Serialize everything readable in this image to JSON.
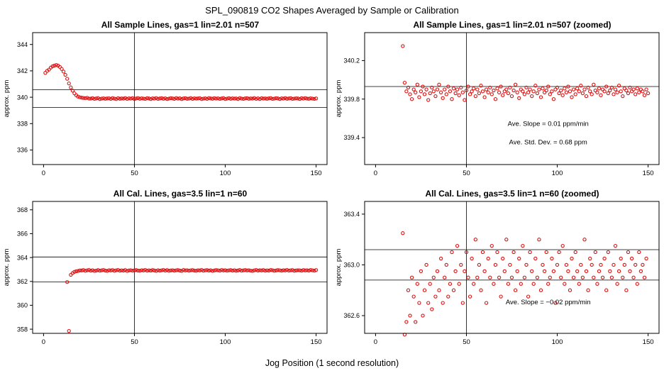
{
  "figure": {
    "title": "SPL_090819  CO2 Shapes Averaged by Sample or Calibration",
    "xlabel": "Jog Position (1 second resolution)"
  },
  "colors": {
    "point": "#e01010",
    "axis": "#000000",
    "background": "#ffffff"
  },
  "chart_data": [
    {
      "type": "scatter",
      "title": "All Sample Lines, gas=1 lin=2.01 n=507",
      "ylabel": "approx. ppm",
      "xlim": [
        -6,
        156
      ],
      "ylim": [
        334.9,
        344.9
      ],
      "xticks": [
        "0",
        "50",
        "100",
        "150"
      ],
      "yticks": [
        "336",
        "338",
        "340",
        "342",
        "344"
      ],
      "hlines": [
        340.58,
        339.22
      ],
      "vlines": [
        50
      ],
      "x0": 1,
      "xstep": 1,
      "y": [
        341.85,
        342.0,
        342.1,
        342.25,
        342.35,
        342.4,
        342.45,
        342.4,
        342.3,
        342.15,
        341.95,
        341.7,
        341.4,
        341.05,
        340.75,
        340.5,
        340.3,
        340.15,
        340.05,
        340.0,
        339.97,
        339.95,
        339.93,
        339.96,
        339.9,
        339.9,
        339.93,
        339.88,
        339.91,
        339.94,
        339.87,
        339.9,
        339.92,
        339.89,
        339.91,
        339.92,
        339.88,
        339.94,
        339.9,
        339.87,
        339.93,
        339.89,
        339.91,
        339.9,
        339.94,
        339.88,
        339.92,
        339.9,
        339.93,
        339.87,
        339.91,
        339.94,
        339.89,
        339.92,
        339.9,
        339.88,
        339.93,
        339.91,
        339.87,
        339.92,
        339.9,
        339.94,
        339.88,
        339.91,
        339.93,
        339.89,
        339.92,
        339.87,
        339.9,
        339.93,
        339.91,
        339.88,
        339.94,
        339.9,
        339.92,
        339.87,
        339.91,
        339.93,
        339.89,
        339.9,
        339.94,
        339.88,
        339.92,
        339.9,
        339.91,
        339.93,
        339.87,
        339.9,
        339.92,
        339.88,
        339.94,
        339.91,
        339.89,
        339.93,
        339.9,
        339.92,
        339.88,
        339.91,
        339.94,
        339.87,
        339.9,
        339.93,
        339.89,
        339.92,
        339.9,
        339.91,
        339.87,
        339.94,
        339.9,
        339.88,
        339.92,
        339.93,
        339.89,
        339.91,
        339.9,
        339.94,
        339.88,
        339.92,
        339.87,
        339.93,
        339.9,
        339.91,
        339.89,
        339.92,
        339.94,
        339.88,
        339.9,
        339.93,
        339.91,
        339.87,
        339.92,
        339.9,
        339.94,
        339.89,
        339.91,
        339.93,
        339.88,
        339.9,
        339.92,
        339.91,
        339.87,
        339.93,
        339.9,
        339.94,
        339.9,
        339.89,
        339.92,
        339.9,
        339.88,
        339.91
      ],
      "annotations": []
    },
    {
      "type": "scatter",
      "title": "All Sample Lines, gas=1 lin=2.01 n=507 (zoomed)",
      "ylabel": "approx. ppm",
      "xlim": [
        -6,
        156
      ],
      "ylim": [
        339.12,
        340.49
      ],
      "xticks": [
        "0",
        "50",
        "100",
        "150"
      ],
      "yticks": [
        "339.4",
        "339.8",
        "340.2"
      ],
      "hlines": [
        339.93
      ],
      "vlines": [
        50
      ],
      "x0": 15,
      "xstep": 1,
      "y": [
        340.35,
        339.97,
        339.88,
        339.92,
        339.85,
        339.8,
        339.9,
        339.87,
        339.95,
        339.82,
        339.88,
        339.93,
        339.85,
        339.9,
        339.79,
        339.86,
        339.92,
        339.88,
        339.83,
        339.9,
        339.95,
        339.87,
        339.81,
        339.9,
        339.85,
        339.93,
        339.88,
        339.8,
        339.91,
        339.86,
        339.9,
        339.84,
        339.92,
        339.87,
        339.79,
        339.89,
        339.93,
        339.85,
        339.88,
        339.91,
        339.83,
        339.9,
        339.86,
        339.94,
        339.88,
        339.82,
        339.9,
        339.87,
        339.92,
        339.85,
        339.89,
        339.8,
        339.91,
        339.87,
        339.93,
        339.84,
        339.88,
        339.9,
        339.86,
        339.92,
        339.83,
        339.89,
        339.95,
        339.87,
        339.81,
        339.9,
        339.88,
        339.85,
        339.92,
        339.87,
        339.9,
        339.83,
        339.88,
        339.94,
        339.86,
        339.9,
        339.82,
        339.91,
        339.87,
        339.89,
        339.93,
        339.85,
        339.88,
        339.8,
        339.9,
        339.92,
        339.86,
        339.89,
        339.84,
        339.91,
        339.87,
        339.93,
        339.88,
        339.82,
        339.9,
        339.85,
        339.91,
        339.88,
        339.94,
        339.86,
        339.9,
        339.83,
        339.92,
        339.88,
        339.85,
        339.95,
        339.89,
        339.87,
        339.91,
        339.84,
        339.9,
        339.88,
        339.93,
        339.86,
        339.89,
        339.92,
        339.85,
        339.9,
        339.87,
        339.94,
        339.88,
        339.83,
        339.91,
        339.89,
        339.86,
        339.92,
        339.88,
        339.9,
        339.85,
        339.91,
        339.87,
        339.9,
        339.88,
        339.84,
        339.9,
        339.86
      ],
      "annotations": [
        {
          "x": 95,
          "y": 339.52,
          "text": "Ave. Slope =  0.01  ppm/min"
        },
        {
          "x": 95,
          "y": 339.33,
          "text": "Ave. Std. Dev. =  0.68  ppm"
        }
      ]
    },
    {
      "type": "scatter",
      "title": "All Cal. Lines, gas=3.5 lin=1 n=60",
      "ylabel": "approx. ppm",
      "xlim": [
        -6,
        156
      ],
      "ylim": [
        357.65,
        368.7
      ],
      "xticks": [
        "0",
        "50",
        "100",
        "150"
      ],
      "yticks": [
        "358",
        "360",
        "362",
        "364",
        "366",
        "368"
      ],
      "hlines": [
        364.05,
        361.95
      ],
      "vlines": [
        50
      ],
      "x0": 13,
      "xstep": 1,
      "y": [
        361.95,
        357.85,
        362.55,
        362.7,
        362.8,
        362.85,
        362.88,
        362.92,
        362.92,
        362.95,
        362.89,
        362.93,
        362.96,
        362.9,
        362.94,
        362.88,
        362.91,
        362.95,
        362.9,
        362.93,
        362.96,
        362.91,
        362.88,
        362.94,
        362.92,
        362.95,
        362.89,
        362.93,
        362.96,
        362.9,
        362.93,
        362.91,
        362.95,
        362.88,
        362.92,
        362.94,
        362.9,
        362.93,
        362.95,
        362.91,
        362.89,
        362.94,
        362.92,
        362.96,
        362.9,
        362.93,
        362.91,
        362.95,
        362.92,
        362.88,
        362.94,
        362.9,
        362.93,
        362.96,
        362.91,
        362.95,
        362.89,
        362.92,
        362.94,
        362.9,
        362.93,
        362.95,
        362.91,
        362.88,
        362.96,
        362.92,
        362.94,
        362.9,
        362.93,
        362.95,
        362.91,
        362.89,
        362.94,
        362.92,
        362.96,
        362.9,
        362.93,
        362.95,
        362.91,
        362.94,
        362.88,
        362.92,
        362.95,
        362.93,
        362.9,
        362.96,
        362.92,
        362.94,
        362.9,
        362.93,
        362.95,
        362.91,
        362.94,
        362.89,
        362.92,
        362.96,
        362.9,
        362.93,
        362.95,
        362.92,
        362.94,
        362.9,
        362.88,
        362.93,
        362.96,
        362.91,
        362.94,
        362.92,
        362.95,
        362.9,
        362.93,
        362.91,
        362.96,
        362.94,
        362.89,
        362.92,
        362.95,
        362.93,
        362.9,
        362.94,
        362.92,
        362.96,
        362.91,
        362.93,
        362.95,
        362.89,
        362.92,
        362.94,
        362.93,
        362.9,
        362.95,
        362.92,
        362.94,
        362.91,
        362.96,
        362.93,
        362.9,
        362.95
      ],
      "annotations": []
    },
    {
      "type": "scatter",
      "title": "All Cal. Lines, gas=3.5 lin=1 n=60 (zoomed)",
      "ylabel": "approx. ppm",
      "xlim": [
        -6,
        156
      ],
      "ylim": [
        362.46,
        363.5
      ],
      "xticks": [
        "0",
        "50",
        "100",
        "150"
      ],
      "yticks": [
        "362.6",
        "363.0",
        "363.4"
      ],
      "hlines": [
        363.12,
        362.88
      ],
      "vlines": [
        50
      ],
      "x0": 15,
      "xstep": 1,
      "y": [
        363.25,
        362.45,
        362.55,
        362.8,
        362.6,
        362.9,
        362.75,
        362.55,
        362.85,
        362.7,
        362.95,
        362.6,
        362.8,
        363.0,
        362.7,
        362.85,
        362.65,
        362.9,
        362.75,
        362.95,
        362.8,
        363.05,
        362.7,
        362.9,
        363.0,
        362.75,
        362.85,
        363.1,
        362.8,
        362.95,
        363.15,
        362.85,
        363.0,
        362.7,
        362.95,
        363.1,
        362.9,
        362.75,
        363.05,
        362.85,
        363.2,
        362.9,
        363.0,
        362.8,
        363.1,
        362.95,
        362.7,
        363.05,
        362.9,
        363.15,
        362.85,
        363.0,
        363.1,
        362.9,
        362.75,
        363.05,
        362.95,
        363.2,
        362.85,
        363.0,
        362.9,
        363.1,
        362.8,
        362.95,
        363.05,
        362.85,
        363.15,
        362.9,
        363.0,
        362.75,
        363.1,
        362.95,
        362.85,
        363.05,
        362.9,
        363.2,
        362.8,
        363.0,
        362.95,
        363.1,
        362.85,
        362.9,
        363.05,
        362.95,
        362.7,
        363.0,
        363.1,
        362.9,
        363.15,
        362.85,
        363.0,
        362.95,
        362.8,
        363.05,
        362.9,
        363.1,
        362.95,
        362.85,
        363.0,
        362.9,
        363.2,
        362.95,
        362.8,
        363.05,
        363.0,
        362.9,
        363.1,
        362.85,
        362.95,
        363.0,
        362.9,
        363.05,
        362.8,
        363.1,
        362.95,
        362.9,
        363.0,
        363.15,
        362.85,
        362.95,
        363.05,
        362.9,
        363.0,
        362.8,
        363.1,
        362.95,
        363.05,
        362.9,
        363.0,
        362.85,
        363.1,
        362.95,
        363.0,
        362.9,
        363.05
      ],
      "annotations": [
        {
          "x": 95,
          "y": 362.69,
          "text": "Ave. Slope =  −0.02  ppm/min"
        }
      ]
    }
  ]
}
